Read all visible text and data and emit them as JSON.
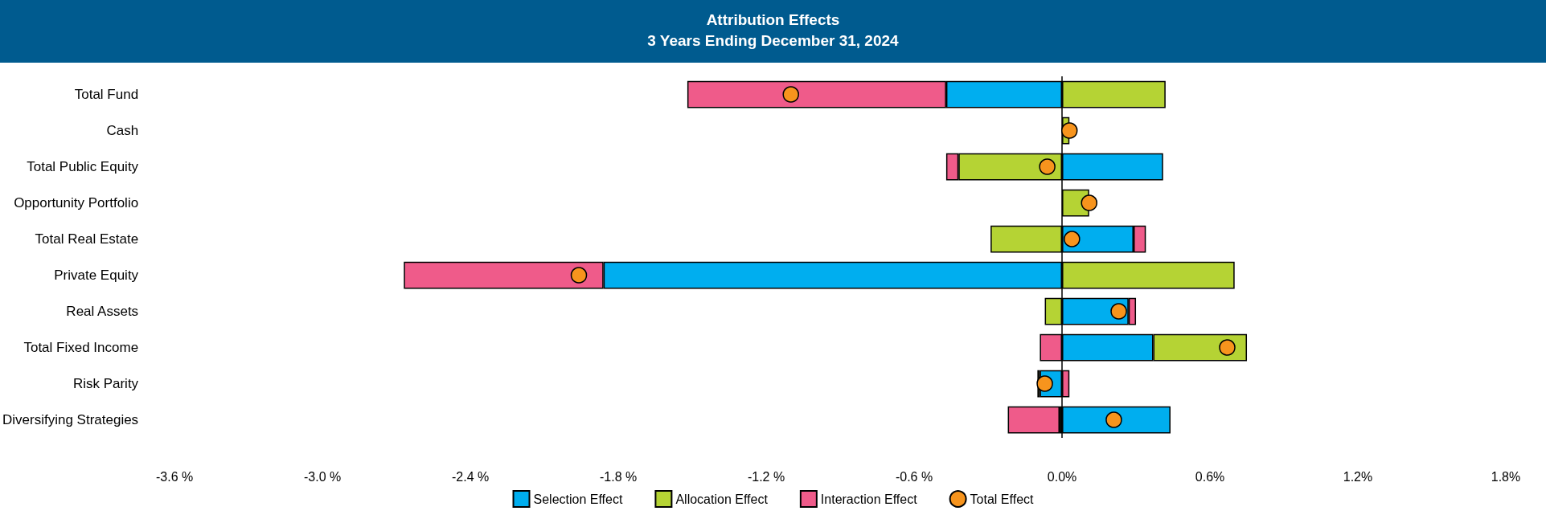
{
  "chart_data": {
    "type": "bar",
    "title": "Attribution Effects",
    "subtitle": "3 Years Ending December 31, 2024",
    "orientation": "horizontal",
    "stacked": true,
    "categories": [
      "Total Fund",
      "Cash",
      "Total Public Equity",
      "Opportunity Portfolio",
      "Total Real Estate",
      "Private Equity",
      "Real Assets",
      "Total Fixed Income",
      "Risk Parity",
      "Diversifying Strategies"
    ],
    "series": [
      {
        "name": "Selection Effect",
        "color": "#00aeef",
        "values": [
          -0.47,
          null,
          0.41,
          null,
          0.29,
          -1.86,
          0.27,
          0.37,
          -0.09,
          0.44
        ]
      },
      {
        "name": "Allocation Effect",
        "color": "#b5d334",
        "values": [
          0.42,
          0.03,
          -0.42,
          0.11,
          -0.29,
          0.7,
          -0.07,
          0.38,
          -0.01,
          -0.01
        ]
      },
      {
        "name": "Interaction Effect",
        "color": "#ef5b8a",
        "values": [
          -1.05,
          null,
          -0.05,
          null,
          0.05,
          -0.81,
          0.03,
          -0.09,
          0.03,
          -0.21
        ]
      },
      {
        "name": "Total Effect",
        "type": "scatter",
        "color": "#f7941d",
        "values": [
          -1.1,
          0.03,
          -0.06,
          0.11,
          0.04,
          -1.96,
          0.23,
          0.67,
          -0.07,
          0.21
        ]
      }
    ],
    "xlim": [
      -3.6,
      1.8
    ],
    "xticks": [
      {
        "value": -3.6,
        "label": "-3.6 %"
      },
      {
        "value": -3.0,
        "label": "-3.0 %"
      },
      {
        "value": -2.4,
        "label": "-2.4 %"
      },
      {
        "value": -1.8,
        "label": "-1.8 %"
      },
      {
        "value": -1.2,
        "label": "-1.2 %"
      },
      {
        "value": -0.6,
        "label": "-0.6 %"
      },
      {
        "value": 0,
        "label": "0.0%"
      },
      {
        "value": 0.6,
        "label": "0.6%"
      },
      {
        "value": 1.2,
        "label": "1.2%"
      },
      {
        "value": 1.8,
        "label": "1.8%"
      }
    ],
    "ref_lines": [
      {
        "axis": "x",
        "value": 0
      }
    ],
    "marker": "circle",
    "grid": false,
    "legend": "bottom"
  }
}
